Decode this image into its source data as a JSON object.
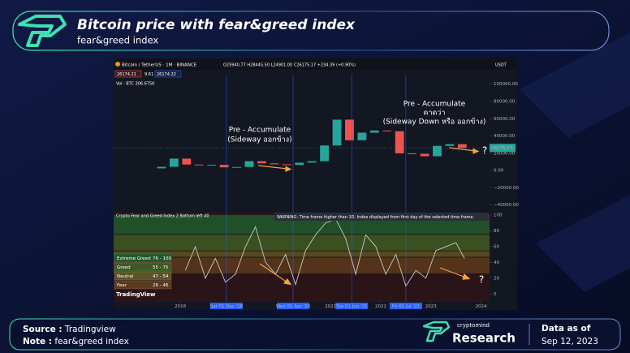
{
  "header": {
    "title": "Bitcoin price with fear&greed index",
    "subtitle": "fear&greed index"
  },
  "screenshot": {
    "symbol": "Bitcoin / TetherUS · 1M · BINANCE",
    "ohlc": "O25940.77 H28445.50 L24901.00 C26175.17 +234.39 (+0.90%)",
    "bid": "26174.21",
    "spread": "9.61",
    "ask": "26174.22",
    "volume_label": "Vol · BTC 306.675K",
    "currency": "USDT",
    "last_price_label": "26175.17",
    "indicator_label": "Crypto Fear and Greed Index 2 Bottom left 40",
    "warning": "WARNING: Time frame higher than 1D. Index displayed from first day of the selected time frame.",
    "brand": "TradingView",
    "annotations": [
      "Pre - Accumulate",
      "(Sideway ออกข้าง)",
      "Pre - Accumulate",
      "คาดว่า",
      "(Sideway Down หรือ ออกข้าง)",
      "?",
      "?"
    ]
  },
  "chart_data": [
    {
      "type": "candlestick",
      "x": [
        2017.625,
        2017.875,
        2018.125,
        2018.375,
        2018.625,
        2018.875,
        2019.125,
        2019.375,
        2019.625,
        2019.875,
        2020.125,
        2020.375,
        2020.625,
        2020.875,
        2021.125,
        2021.375,
        2021.625,
        2021.875,
        2022.125,
        2022.375,
        2022.625,
        2022.875,
        2023.125,
        2023.375,
        2023.625
      ],
      "open": [
        2500,
        4300,
        13800,
        6900,
        6400,
        6600,
        3700,
        4100,
        10800,
        8300,
        7200,
        6400,
        9100,
        10800,
        29000,
        58900,
        35000,
        43800,
        46300,
        45500,
        19900,
        19400,
        16500,
        28500,
        30500
      ],
      "close": [
        4300,
        13800,
        6900,
        6400,
        6600,
        3700,
        4100,
        10800,
        8300,
        7200,
        6400,
        9100,
        10800,
        29000,
        58900,
        35000,
        43800,
        46300,
        45500,
        19900,
        19400,
        16500,
        28500,
        30500,
        26175
      ],
      "up_color": "#26a69a",
      "down_color": "#ef5350",
      "xlim": [
        2016.67,
        2024.17
      ],
      "ylim": [
        -45000,
        111000
      ],
      "yticks": [
        {
          "value": 100000,
          "label": "100000.00"
        },
        {
          "value": 80000,
          "label": "80000.00"
        },
        {
          "value": 60000,
          "label": "60000.00"
        },
        {
          "value": 40000,
          "label": "40000.00"
        },
        {
          "value": 20000,
          "label": "20000.00"
        },
        {
          "value": 0,
          "label": "0.00"
        },
        {
          "value": -20000,
          "label": "−20000.00"
        },
        {
          "value": -40000,
          "label": "−40000.00"
        }
      ]
    },
    {
      "type": "line",
      "color": "#c8c8c8",
      "x": [
        2018.1,
        2018.3,
        2018.5,
        2018.7,
        2018.9,
        2019.1,
        2019.3,
        2019.5,
        2019.7,
        2019.9,
        2020.1,
        2020.3,
        2020.5,
        2020.7,
        2020.9,
        2021.1,
        2021.3,
        2021.5,
        2021.7,
        2021.9,
        2022.1,
        2022.3,
        2022.5,
        2022.7,
        2022.9,
        2023.1,
        2023.3,
        2023.5,
        2023.67
      ],
      "values": [
        30,
        60,
        20,
        45,
        15,
        25,
        60,
        85,
        40,
        25,
        50,
        12,
        55,
        75,
        90,
        95,
        70,
        25,
        75,
        60,
        25,
        50,
        10,
        30,
        20,
        55,
        60,
        65,
        45
      ],
      "bands": [
        {
          "name": "Extreme Greed",
          "label": "76 - 100",
          "from": 76,
          "to": 100,
          "color": "#1f5a2a"
        },
        {
          "name": "Greed",
          "label": "55 - 75",
          "from": 55,
          "to": 75,
          "color": "#3d5a22"
        },
        {
          "name": "Neutral",
          "label": "47 - 54",
          "from": 47,
          "to": 54,
          "color": "#5a5422"
        },
        {
          "name": "Fear",
          "label": "26 - 46",
          "from": 26,
          "to": 46,
          "color": "#5a3a1c"
        }
      ],
      "xlim": [
        2016.67,
        2024.17
      ],
      "ylim": [
        -10,
        103
      ],
      "yticks": [
        100,
        80,
        60,
        40,
        20,
        0
      ],
      "xticks": [
        {
          "value": 2018,
          "label": "2018"
        },
        {
          "value": 2018.92,
          "label": "Sat 01 Dec '18"
        },
        {
          "value": 2020.25,
          "label": "Wed 01 Apr '20"
        },
        {
          "value": 2021,
          "label": "2021"
        },
        {
          "value": 2021.42,
          "label": "Tue 01 Jun '21"
        },
        {
          "value": 2022,
          "label": "2022"
        },
        {
          "value": 2022.5,
          "label": "Fri 01 Jul '22"
        },
        {
          "value": 2023,
          "label": "2023"
        },
        {
          "value": 2024,
          "label": "2024"
        }
      ]
    }
  ],
  "footer": {
    "source_label": "Source :",
    "source": "Tradingview",
    "note_label": "Note :",
    "note": "fear&greed index",
    "brand_top": "cryptomind",
    "brand": "Research",
    "date_label": "Data as of",
    "date": "Sep 12, 2023"
  }
}
